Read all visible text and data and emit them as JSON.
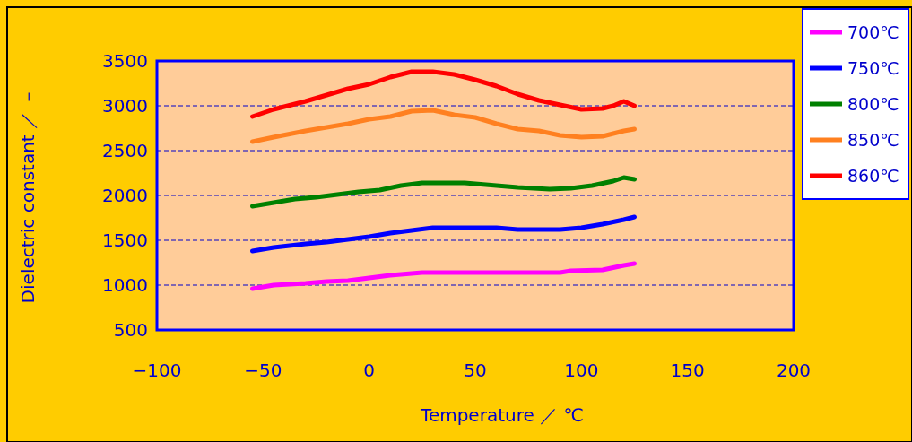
{
  "chart_data": {
    "type": "line",
    "xlabel": "Temperature ／ ℃",
    "ylabel": "Dielectric constant ／ －",
    "xlim": [
      -100,
      200
    ],
    "ylim": [
      500,
      3500
    ],
    "xticks": [
      -100,
      -50,
      0,
      50,
      100,
      150,
      200
    ],
    "yticks": [
      500,
      1000,
      1500,
      2000,
      2500,
      3000,
      3500
    ],
    "grid": "y",
    "legend": "top right",
    "line_style": "solid",
    "marker": "none",
    "series": [
      {
        "name": "700℃",
        "color": "#ff00ff",
        "x": [
          -55,
          -45,
          -30,
          -20,
          -10,
          0,
          10,
          20,
          25,
          50,
          90,
          95,
          110,
          120,
          125
        ],
        "values": [
          960,
          1000,
          1020,
          1040,
          1050,
          1080,
          1110,
          1130,
          1140,
          1140,
          1140,
          1160,
          1170,
          1220,
          1240
        ]
      },
      {
        "name": "750℃",
        "color": "#0000ff",
        "x": [
          -55,
          -45,
          -30,
          -20,
          -10,
          0,
          10,
          20,
          30,
          60,
          70,
          90,
          100,
          110,
          120,
          125
        ],
        "values": [
          1380,
          1420,
          1460,
          1480,
          1510,
          1540,
          1580,
          1610,
          1640,
          1640,
          1620,
          1620,
          1640,
          1680,
          1730,
          1760
        ]
      },
      {
        "name": "800℃",
        "color": "#008000",
        "x": [
          -55,
          -45,
          -35,
          -25,
          -15,
          -5,
          5,
          15,
          25,
          45,
          55,
          70,
          85,
          95,
          105,
          115,
          120,
          125
        ],
        "values": [
          1880,
          1920,
          1960,
          1980,
          2010,
          2040,
          2060,
          2110,
          2140,
          2140,
          2120,
          2090,
          2070,
          2080,
          2110,
          2160,
          2200,
          2180
        ]
      },
      {
        "name": "850℃",
        "color": "#ff8020",
        "x": [
          -55,
          -45,
          -30,
          -20,
          -10,
          0,
          10,
          20,
          30,
          40,
          50,
          60,
          70,
          80,
          90,
          100,
          110,
          120,
          125
        ],
        "values": [
          2600,
          2650,
          2720,
          2760,
          2800,
          2850,
          2880,
          2940,
          2950,
          2900,
          2870,
          2800,
          2740,
          2720,
          2670,
          2650,
          2660,
          2720,
          2740
        ]
      },
      {
        "name": "860℃",
        "color": "#ff0000",
        "x": [
          -55,
          -45,
          -30,
          -20,
          -10,
          0,
          10,
          20,
          30,
          40,
          50,
          60,
          70,
          80,
          90,
          100,
          110,
          115,
          120,
          125
        ],
        "values": [
          2880,
          2960,
          3050,
          3120,
          3190,
          3240,
          3320,
          3380,
          3380,
          3350,
          3290,
          3220,
          3130,
          3060,
          3010,
          2960,
          2970,
          3000,
          3050,
          3000
        ]
      }
    ]
  }
}
